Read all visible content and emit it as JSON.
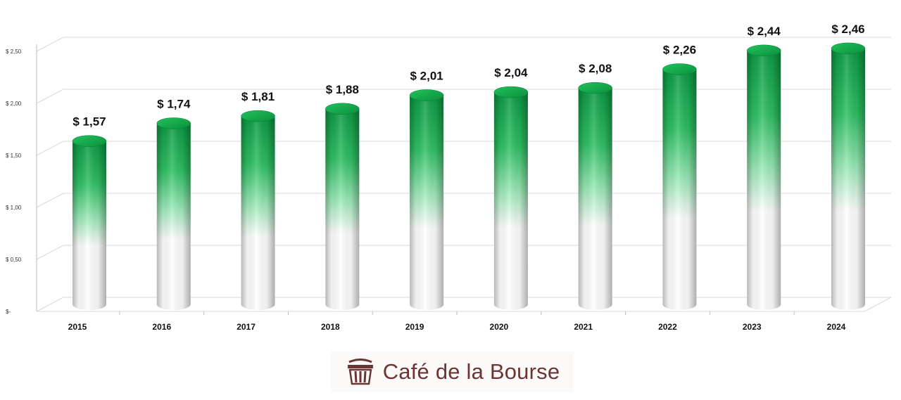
{
  "chart_data": {
    "type": "bar",
    "title": "",
    "xlabel": "",
    "ylabel": "",
    "categories": [
      "2015",
      "2016",
      "2017",
      "2018",
      "2019",
      "2020",
      "2021",
      "2022",
      "2023",
      "2024"
    ],
    "values": [
      1.57,
      1.74,
      1.81,
      1.88,
      2.01,
      2.04,
      2.08,
      2.26,
      2.44,
      2.46
    ],
    "data_labels": [
      "$ 1,57",
      "$ 1,74",
      "$ 1,81",
      "$ 1,88",
      "$ 2,01",
      "$ 2,04",
      "$ 2,08",
      "$ 2,26",
      "$ 2,44",
      "$ 2,46"
    ],
    "ylim": [
      0,
      2.5
    ],
    "y_ticks": [
      0,
      0.5,
      1.0,
      1.5,
      2.0,
      2.5
    ],
    "y_tick_labels": [
      "$-",
      "$ 0,50",
      "$ 1,00",
      "$ 1,50",
      "$ 2,00",
      "$ 2,50"
    ],
    "grid": true,
    "legend": "none",
    "bar_style": "3d-cylinder",
    "colors": {
      "bar_top": "#0fa64a",
      "bar_mid": "#7fe3a1",
      "bar_bottom": "#ffffff",
      "cap": "#12b34f"
    }
  },
  "brand": {
    "name": "Café de la Bourse",
    "logo_icon": "basket-logo-icon",
    "color": "#6b3535"
  }
}
